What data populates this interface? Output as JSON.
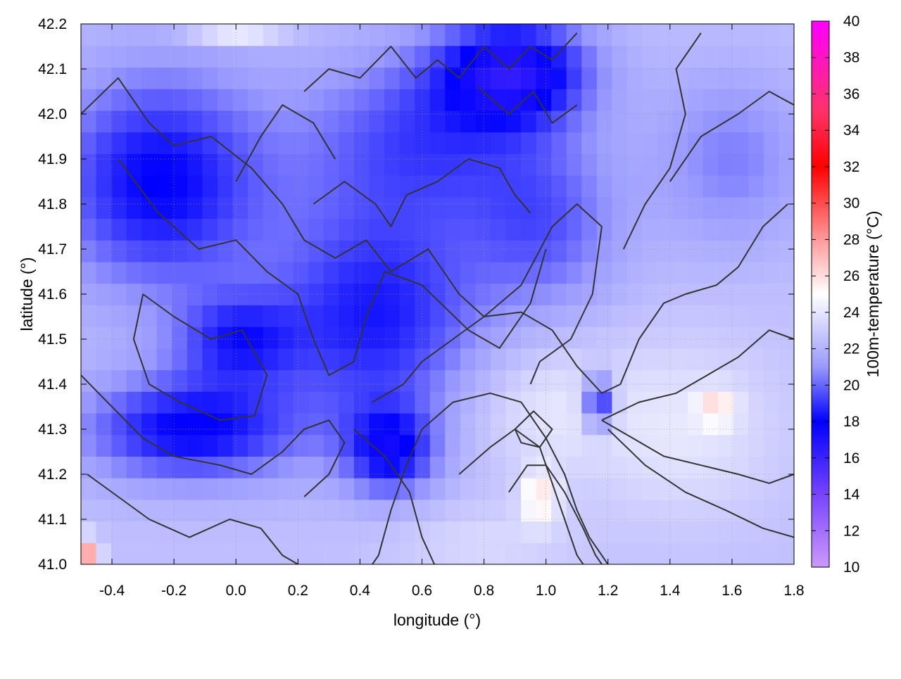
{
  "chart_data": {
    "type": "heatmap",
    "title": "",
    "xlabel": "longitude (°)",
    "ylabel": "latitude (°)",
    "colorbar_label": "100m-temperature (°C)",
    "xlim": [
      -0.5,
      1.8
    ],
    "ylim": [
      41.0,
      42.2
    ],
    "x_ticks": [
      -0.4,
      -0.2,
      0.0,
      0.2,
      0.4,
      0.6,
      0.8,
      1.0,
      1.2,
      1.4,
      1.6,
      1.8
    ],
    "x_tick_labels": [
      "-0.4",
      "-0.2",
      "0.0",
      "0.2",
      "0.4",
      "0.6",
      "0.8",
      "1.0",
      "1.2",
      "1.4",
      "1.6",
      "1.8"
    ],
    "y_ticks": [
      41.0,
      41.1,
      41.2,
      41.3,
      41.4,
      41.5,
      41.6,
      41.7,
      41.8,
      41.9,
      42.0,
      42.1,
      42.2
    ],
    "y_tick_labels": [
      "41.0",
      "41.1",
      "41.2",
      "41.3",
      "41.4",
      "41.5",
      "41.6",
      "41.7",
      "41.8",
      "41.9",
      "42.0",
      "42.1",
      "42.2"
    ],
    "colorbar_range": [
      10,
      40
    ],
    "colorbar_ticks": [
      10,
      12,
      14,
      16,
      18,
      20,
      22,
      24,
      26,
      28,
      30,
      32,
      34,
      36,
      38,
      40
    ],
    "colorbar_tick_labels": [
      "10",
      "12",
      "14",
      "16",
      "18",
      "20",
      "22",
      "24",
      "26",
      "28",
      "30",
      "32",
      "34",
      "36",
      "38",
      "40"
    ],
    "colormap": [
      {
        "value": 10,
        "color": "#cc99ff"
      },
      {
        "value": 14,
        "color": "#7744ff"
      },
      {
        "value": 18,
        "color": "#0000ff"
      },
      {
        "value": 21,
        "color": "#9999ff"
      },
      {
        "value": 25,
        "color": "#ffffff"
      },
      {
        "value": 28,
        "color": "#ff9999"
      },
      {
        "value": 32,
        "color": "#ff0000"
      },
      {
        "value": 35,
        "color": "#ff3366"
      },
      {
        "value": 40,
        "color": "#ff00ff"
      }
    ],
    "grid": true,
    "contour_color": "#333333",
    "field": {
      "nx": 47,
      "ny": 25,
      "base_value": 22.5,
      "anomalies": [
        {
          "lon": -0.25,
          "lat": 41.85,
          "amp": -4.5,
          "rx": 0.35,
          "ry": 0.25
        },
        {
          "lon": -0.15,
          "lat": 41.3,
          "amp": -4.5,
          "rx": 0.35,
          "ry": 0.12
        },
        {
          "lon": 0.45,
          "lat": 41.55,
          "amp": -4.0,
          "rx": 0.35,
          "ry": 0.25
        },
        {
          "lon": 0.9,
          "lat": 42.1,
          "amp": -5.0,
          "rx": 0.25,
          "ry": 0.12
        },
        {
          "lon": 0.6,
          "lat": 41.95,
          "amp": -3.0,
          "rx": 0.4,
          "ry": 0.2
        },
        {
          "lon": 0.0,
          "lat": 41.5,
          "amp": -3.0,
          "rx": 0.2,
          "ry": 0.1
        },
        {
          "lon": 0.5,
          "lat": 41.25,
          "amp": -4.0,
          "rx": 0.15,
          "ry": 0.1
        },
        {
          "lon": 1.0,
          "lat": 41.75,
          "amp": -2.5,
          "rx": 0.25,
          "ry": 0.2
        },
        {
          "lon": 1.6,
          "lat": 41.9,
          "amp": -2.0,
          "rx": 0.25,
          "ry": 0.2
        },
        {
          "lon": 1.17,
          "lat": 41.36,
          "amp": -5.0,
          "rx": 0.05,
          "ry": 0.06
        },
        {
          "lon": 1.0,
          "lat": 41.35,
          "amp": 1.5,
          "rx": 0.25,
          "ry": 0.15
        },
        {
          "lon": 1.45,
          "lat": 41.3,
          "amp": 1.5,
          "rx": 0.3,
          "ry": 0.2
        },
        {
          "lon": 0.98,
          "lat": 41.15,
          "amp": 3.0,
          "rx": 0.06,
          "ry": 0.06
        },
        {
          "lon": 1.55,
          "lat": 41.35,
          "amp": 2.5,
          "rx": 0.06,
          "ry": 0.04
        },
        {
          "lon": -0.48,
          "lat": 41.02,
          "amp": 5.0,
          "rx": 0.04,
          "ry": 0.04
        },
        {
          "lon": 0.0,
          "lat": 42.19,
          "amp": 3.5,
          "rx": 0.15,
          "ry": 0.02
        },
        {
          "lon": 0.8,
          "lat": 41.05,
          "amp": 1.0,
          "rx": 0.3,
          "ry": 0.08
        }
      ]
    },
    "contours": [
      [
        [
          -0.5,
          42.0
        ],
        [
          -0.38,
          42.08
        ],
        [
          -0.28,
          41.98
        ],
        [
          -0.2,
          41.93
        ],
        [
          -0.08,
          41.95
        ],
        [
          0.05,
          41.88
        ],
        [
          0.15,
          41.8
        ],
        [
          0.22,
          41.72
        ],
        [
          0.32,
          41.68
        ],
        [
          0.42,
          41.72
        ],
        [
          0.5,
          41.65
        ],
        [
          0.62,
          41.7
        ],
        [
          0.72,
          41.6
        ],
        [
          0.8,
          41.55
        ],
        [
          0.92,
          41.62
        ],
        [
          1.02,
          41.75
        ],
        [
          1.1,
          41.8
        ],
        [
          1.18,
          41.75
        ],
        [
          1.15,
          41.6
        ],
        [
          1.08,
          41.5
        ],
        [
          0.98,
          41.45
        ],
        [
          0.95,
          41.4
        ]
      ],
      [
        [
          -0.38,
          41.9
        ],
        [
          -0.25,
          41.78
        ],
        [
          -0.12,
          41.7
        ],
        [
          0.0,
          41.72
        ],
        [
          0.1,
          41.65
        ],
        [
          0.2,
          41.6
        ],
        [
          0.25,
          41.5
        ],
        [
          0.3,
          41.42
        ],
        [
          0.38,
          41.45
        ],
        [
          0.42,
          41.55
        ],
        [
          0.48,
          41.65
        ],
        [
          0.6,
          41.62
        ],
        [
          0.75,
          41.52
        ],
        [
          0.85,
          41.48
        ],
        [
          0.95,
          41.58
        ],
        [
          1.0,
          41.7
        ]
      ],
      [
        [
          -0.3,
          41.6
        ],
        [
          -0.2,
          41.55
        ],
        [
          -0.08,
          41.5
        ],
        [
          0.02,
          41.52
        ],
        [
          0.1,
          41.42
        ],
        [
          0.06,
          41.33
        ],
        [
          -0.05,
          41.32
        ],
        [
          -0.18,
          41.36
        ],
        [
          -0.28,
          41.4
        ],
        [
          -0.33,
          41.5
        ],
        [
          -0.3,
          41.6
        ]
      ],
      [
        [
          -0.5,
          41.42
        ],
        [
          -0.4,
          41.35
        ],
        [
          -0.3,
          41.28
        ],
        [
          -0.2,
          41.24
        ],
        [
          -0.05,
          41.22
        ],
        [
          0.05,
          41.2
        ],
        [
          0.15,
          41.25
        ],
        [
          0.22,
          41.3
        ],
        [
          0.3,
          41.32
        ],
        [
          0.35,
          41.27
        ],
        [
          0.3,
          41.2
        ],
        [
          0.22,
          41.15
        ]
      ],
      [
        [
          -0.48,
          41.2
        ],
        [
          -0.38,
          41.15
        ],
        [
          -0.28,
          41.1
        ],
        [
          -0.15,
          41.06
        ],
        [
          -0.02,
          41.1
        ],
        [
          0.08,
          41.08
        ],
        [
          0.15,
          41.02
        ],
        [
          0.2,
          41.0
        ]
      ],
      [
        [
          0.38,
          41.3
        ],
        [
          0.48,
          41.24
        ],
        [
          0.56,
          41.16
        ],
        [
          0.6,
          41.06
        ],
        [
          0.64,
          41.0
        ]
      ],
      [
        [
          0.44,
          41.36
        ],
        [
          0.54,
          41.4
        ],
        [
          0.6,
          41.45
        ],
        [
          0.7,
          41.5
        ],
        [
          0.8,
          41.55
        ],
        [
          0.92,
          41.56
        ],
        [
          1.02,
          41.52
        ],
        [
          1.1,
          41.44
        ],
        [
          1.18,
          41.38
        ],
        [
          1.24,
          41.4
        ],
        [
          1.3,
          41.5
        ],
        [
          1.38,
          41.58
        ],
        [
          1.45,
          41.6
        ],
        [
          1.55,
          41.62
        ],
        [
          1.62,
          41.66
        ],
        [
          1.7,
          41.75
        ],
        [
          1.78,
          41.8
        ]
      ],
      [
        [
          0.6,
          41.3
        ],
        [
          0.7,
          41.36
        ],
        [
          0.82,
          41.38
        ],
        [
          0.92,
          41.36
        ],
        [
          1.0,
          41.28
        ],
        [
          1.06,
          41.2
        ],
        [
          1.1,
          41.12
        ],
        [
          1.14,
          41.06
        ],
        [
          1.18,
          41.02
        ],
        [
          1.2,
          41.0
        ]
      ],
      [
        [
          0.72,
          41.2
        ],
        [
          0.82,
          41.26
        ],
        [
          0.9,
          41.3
        ],
        [
          0.98,
          41.26
        ],
        [
          1.02,
          41.18
        ],
        [
          1.06,
          41.1
        ],
        [
          1.1,
          41.02
        ],
        [
          1.12,
          41.0
        ]
      ],
      [
        [
          0.88,
          41.16
        ],
        [
          0.94,
          41.22
        ],
        [
          1.0,
          41.22
        ],
        [
          1.06,
          41.16
        ],
        [
          1.12,
          41.08
        ],
        [
          1.16,
          41.02
        ],
        [
          1.18,
          41.0
        ]
      ],
      [
        [
          0.9,
          41.3
        ],
        [
          0.96,
          41.34
        ],
        [
          1.02,
          41.3
        ],
        [
          0.98,
          41.26
        ],
        [
          0.92,
          41.27
        ],
        [
          0.9,
          41.3
        ]
      ],
      [
        [
          1.18,
          41.32
        ],
        [
          1.28,
          41.28
        ],
        [
          1.38,
          41.24
        ],
        [
          1.5,
          41.22
        ],
        [
          1.62,
          41.2
        ],
        [
          1.72,
          41.18
        ],
        [
          1.8,
          41.2
        ]
      ],
      [
        [
          1.18,
          41.32
        ],
        [
          1.3,
          41.36
        ],
        [
          1.42,
          41.38
        ],
        [
          1.52,
          41.42
        ],
        [
          1.62,
          41.46
        ],
        [
          1.72,
          41.52
        ],
        [
          1.8,
          41.5
        ]
      ],
      [
        [
          1.2,
          41.3
        ],
        [
          1.32,
          41.22
        ],
        [
          1.45,
          41.16
        ],
        [
          1.58,
          41.12
        ],
        [
          1.7,
          41.08
        ],
        [
          1.8,
          41.06
        ]
      ],
      [
        [
          1.4,
          41.85
        ],
        [
          1.5,
          41.95
        ],
        [
          1.62,
          42.0
        ],
        [
          1.72,
          42.05
        ],
        [
          1.8,
          42.02
        ]
      ],
      [
        [
          1.25,
          41.7
        ],
        [
          1.32,
          41.8
        ],
        [
          1.4,
          41.88
        ],
        [
          1.45,
          42.0
        ],
        [
          1.42,
          42.1
        ],
        [
          1.5,
          42.18
        ]
      ],
      [
        [
          0.22,
          42.05
        ],
        [
          0.3,
          42.1
        ],
        [
          0.4,
          42.08
        ],
        [
          0.5,
          42.15
        ],
        [
          0.58,
          42.08
        ],
        [
          0.65,
          42.12
        ],
        [
          0.72,
          42.08
        ],
        [
          0.8,
          42.15
        ],
        [
          0.88,
          42.1
        ],
        [
          0.95,
          42.15
        ],
        [
          1.02,
          42.12
        ],
        [
          1.1,
          42.18
        ]
      ],
      [
        [
          0.78,
          42.06
        ],
        [
          0.88,
          42.0
        ],
        [
          0.96,
          42.05
        ],
        [
          1.02,
          41.98
        ],
        [
          1.1,
          42.02
        ]
      ],
      [
        [
          0.25,
          41.8
        ],
        [
          0.35,
          41.85
        ],
        [
          0.45,
          41.8
        ],
        [
          0.5,
          41.75
        ],
        [
          0.55,
          41.82
        ],
        [
          0.65,
          41.85
        ],
        [
          0.75,
          41.9
        ],
        [
          0.85,
          41.88
        ],
        [
          0.9,
          41.82
        ],
        [
          0.95,
          41.78
        ]
      ],
      [
        [
          0.6,
          41.3
        ],
        [
          0.55,
          41.22
        ],
        [
          0.5,
          41.12
        ],
        [
          0.46,
          41.02
        ],
        [
          0.44,
          41.0
        ]
      ],
      [
        [
          0.0,
          41.85
        ],
        [
          0.08,
          41.95
        ],
        [
          0.15,
          42.02
        ],
        [
          0.25,
          41.98
        ],
        [
          0.32,
          41.9
        ]
      ]
    ]
  }
}
